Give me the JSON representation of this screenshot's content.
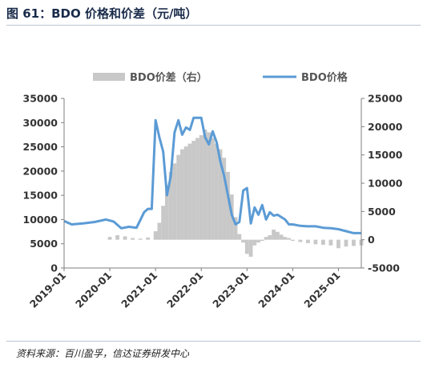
{
  "figure": {
    "title": "图 61：BDO 价格和价差（元/吨）",
    "source": "资料来源：百川盈孚，信达证券研发中心"
  },
  "colors": {
    "price_line": "#5b9bd5",
    "spread_bar": "#c8c8c8",
    "axis": "#7f7f7f"
  },
  "chart_data": {
    "type": "line",
    "x_ticks": [
      "2019-01",
      "2020-01",
      "2021-01",
      "2022-01",
      "2023-01",
      "2024-01",
      "2025-01"
    ],
    "x_range": [
      "2019-01",
      "2025-07"
    ],
    "y_left": {
      "ticks": [
        "0",
        "5000",
        "10000",
        "15000",
        "20000",
        "25000",
        "30000",
        "35000"
      ],
      "range": [
        0,
        35000
      ]
    },
    "y_right": {
      "ticks": [
        "-5000",
        "0",
        "5000",
        "10000",
        "15000",
        "20000",
        "25000"
      ],
      "range": [
        -5000,
        25000
      ]
    },
    "legend_position": "top",
    "series": [
      {
        "name": "BDO价差（右）",
        "type": "bar",
        "axis": "right",
        "x": [
          "2020-01",
          "2020-03",
          "2020-05",
          "2020-07",
          "2020-09",
          "2020-11",
          "2021-01",
          "2021-02",
          "2021-03",
          "2021-04",
          "2021-05",
          "2021-06",
          "2021-07",
          "2021-08",
          "2021-09",
          "2021-10",
          "2021-11",
          "2021-12",
          "2022-01",
          "2022-02",
          "2022-03",
          "2022-04",
          "2022-05",
          "2022-06",
          "2022-07",
          "2022-08",
          "2022-09",
          "2022-10",
          "2022-11",
          "2022-12",
          "2023-01",
          "2023-02",
          "2023-03",
          "2023-04",
          "2023-05",
          "2023-06",
          "2023-07",
          "2023-08",
          "2023-09",
          "2023-10",
          "2023-11",
          "2023-12",
          "2024-01",
          "2024-03",
          "2024-05",
          "2024-07",
          "2024-09",
          "2024-11",
          "2025-01",
          "2025-03",
          "2025-05",
          "2025-07"
        ],
        "values": [
          500,
          800,
          600,
          300,
          200,
          400,
          1500,
          3000,
          6000,
          9000,
          12000,
          13500,
          15000,
          16000,
          16500,
          17000,
          17500,
          18000,
          18500,
          19500,
          19000,
          18000,
          17000,
          16000,
          14500,
          12000,
          8000,
          4000,
          1000,
          -500,
          -2500,
          -3000,
          -1000,
          -500,
          -200,
          500,
          800,
          1800,
          1400,
          900,
          500,
          300,
          -200,
          -400,
          -600,
          -800,
          -900,
          -1000,
          -1500,
          -1200,
          -1100,
          -1000
        ]
      },
      {
        "name": "BDO价格",
        "type": "line",
        "axis": "left",
        "x": [
          "2019-01",
          "2019-03",
          "2019-06",
          "2019-09",
          "2019-12",
          "2020-02",
          "2020-04",
          "2020-06",
          "2020-08",
          "2020-10",
          "2020-11",
          "2020-12",
          "2021-01",
          "2021-02",
          "2021-03",
          "2021-04",
          "2021-05",
          "2021-06",
          "2021-07",
          "2021-08",
          "2021-09",
          "2021-10",
          "2021-11",
          "2021-12",
          "2022-01",
          "2022-02",
          "2022-03",
          "2022-04",
          "2022-05",
          "2022-06",
          "2022-07",
          "2022-08",
          "2022-09",
          "2022-10",
          "2022-11",
          "2022-12",
          "2023-01",
          "2023-02",
          "2023-03",
          "2023-04",
          "2023-05",
          "2023-06",
          "2023-07",
          "2023-08",
          "2023-09",
          "2023-10",
          "2023-11",
          "2023-12",
          "2024-01",
          "2024-03",
          "2024-05",
          "2024-07",
          "2024-09",
          "2024-11",
          "2025-01",
          "2025-03",
          "2025-05",
          "2025-07"
        ],
        "values": [
          9700,
          9000,
          9200,
          9500,
          10000,
          9600,
          8200,
          8500,
          8300,
          11500,
          12200,
          12200,
          30500,
          27000,
          24000,
          15000,
          19000,
          28000,
          30500,
          27500,
          29000,
          28500,
          31000,
          31000,
          31000,
          27000,
          25500,
          28200,
          26000,
          22000,
          19000,
          15000,
          11000,
          9000,
          9500,
          16000,
          16500,
          9200,
          12500,
          11000,
          13000,
          10000,
          11500,
          10800,
          11000,
          10500,
          10000,
          9000,
          9000,
          8700,
          8600,
          8600,
          8300,
          8200,
          8000,
          7600,
          7200,
          7200
        ]
      }
    ]
  }
}
